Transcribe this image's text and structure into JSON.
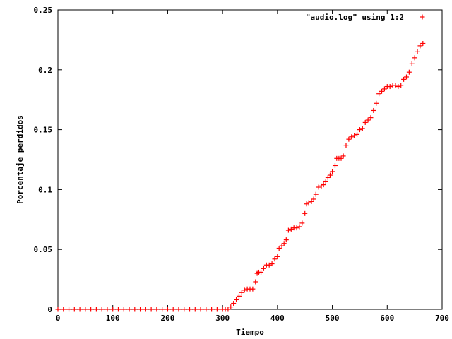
{
  "chart_data": {
    "type": "scatter",
    "title": "",
    "xlabel": "Tiempo",
    "ylabel": "Porcentaje perdidos",
    "xlim": [
      0,
      700
    ],
    "ylim": [
      0,
      0.25
    ],
    "xticks": [
      "0",
      "100",
      "200",
      "300",
      "400",
      "500",
      "600",
      "700"
    ],
    "yticks": [
      "0",
      "0.05",
      "0.1",
      "0.15",
      "0.2",
      "0.25"
    ],
    "grid": false,
    "legend_position": "top-right",
    "marker": "+",
    "color": "#ff0000",
    "series": [
      {
        "name": "\"audio.log\" using 1:2",
        "points": [
          [
            0,
            0
          ],
          [
            10,
            0
          ],
          [
            20,
            0
          ],
          [
            30,
            0
          ],
          [
            40,
            0
          ],
          [
            50,
            0
          ],
          [
            60,
            0
          ],
          [
            70,
            0
          ],
          [
            80,
            0
          ],
          [
            90,
            0
          ],
          [
            100,
            0
          ],
          [
            110,
            0
          ],
          [
            120,
            0
          ],
          [
            130,
            0
          ],
          [
            140,
            0
          ],
          [
            150,
            0
          ],
          [
            160,
            0
          ],
          [
            170,
            0
          ],
          [
            180,
            0
          ],
          [
            190,
            0
          ],
          [
            200,
            0
          ],
          [
            210,
            0
          ],
          [
            220,
            0
          ],
          [
            230,
            0
          ],
          [
            240,
            0
          ],
          [
            250,
            0
          ],
          [
            260,
            0
          ],
          [
            270,
            0
          ],
          [
            280,
            0
          ],
          [
            290,
            0
          ],
          [
            300,
            0
          ],
          [
            305,
            0
          ],
          [
            310,
            0
          ],
          [
            315,
            0.002
          ],
          [
            320,
            0.005
          ],
          [
            325,
            0.008
          ],
          [
            330,
            0.011
          ],
          [
            335,
            0.014
          ],
          [
            340,
            0.016
          ],
          [
            345,
            0.017
          ],
          [
            350,
            0.017
          ],
          [
            355,
            0.017
          ],
          [
            360,
            0.023
          ],
          [
            363,
            0.03
          ],
          [
            366,
            0.031
          ],
          [
            370,
            0.031
          ],
          [
            375,
            0.034
          ],
          [
            380,
            0.037
          ],
          [
            385,
            0.037
          ],
          [
            390,
            0.038
          ],
          [
            395,
            0.042
          ],
          [
            400,
            0.044
          ],
          [
            403,
            0.051
          ],
          [
            408,
            0.053
          ],
          [
            412,
            0.055
          ],
          [
            416,
            0.058
          ],
          [
            420,
            0.066
          ],
          [
            425,
            0.067
          ],
          [
            430,
            0.068
          ],
          [
            435,
            0.068
          ],
          [
            440,
            0.069
          ],
          [
            445,
            0.072
          ],
          [
            450,
            0.08
          ],
          [
            453,
            0.088
          ],
          [
            457,
            0.089
          ],
          [
            462,
            0.09
          ],
          [
            466,
            0.092
          ],
          [
            470,
            0.096
          ],
          [
            475,
            0.102
          ],
          [
            480,
            0.103
          ],
          [
            484,
            0.104
          ],
          [
            488,
            0.107
          ],
          [
            492,
            0.11
          ],
          [
            496,
            0.112
          ],
          [
            500,
            0.115
          ],
          [
            505,
            0.12
          ],
          [
            508,
            0.126
          ],
          [
            512,
            0.126
          ],
          [
            516,
            0.126
          ],
          [
            520,
            0.128
          ],
          [
            525,
            0.137
          ],
          [
            530,
            0.142
          ],
          [
            535,
            0.144
          ],
          [
            540,
            0.145
          ],
          [
            545,
            0.146
          ],
          [
            550,
            0.15
          ],
          [
            555,
            0.151
          ],
          [
            560,
            0.156
          ],
          [
            565,
            0.158
          ],
          [
            570,
            0.16
          ],
          [
            575,
            0.166
          ],
          [
            580,
            0.172
          ],
          [
            585,
            0.18
          ],
          [
            590,
            0.182
          ],
          [
            595,
            0.184
          ],
          [
            600,
            0.186
          ],
          [
            605,
            0.186
          ],
          [
            610,
            0.187
          ],
          [
            615,
            0.187
          ],
          [
            620,
            0.186
          ],
          [
            625,
            0.187
          ],
          [
            630,
            0.192
          ],
          [
            635,
            0.194
          ],
          [
            640,
            0.198
          ],
          [
            645,
            0.205
          ],
          [
            650,
            0.21
          ],
          [
            655,
            0.215
          ],
          [
            660,
            0.22
          ],
          [
            665,
            0.222
          ]
        ]
      }
    ]
  }
}
